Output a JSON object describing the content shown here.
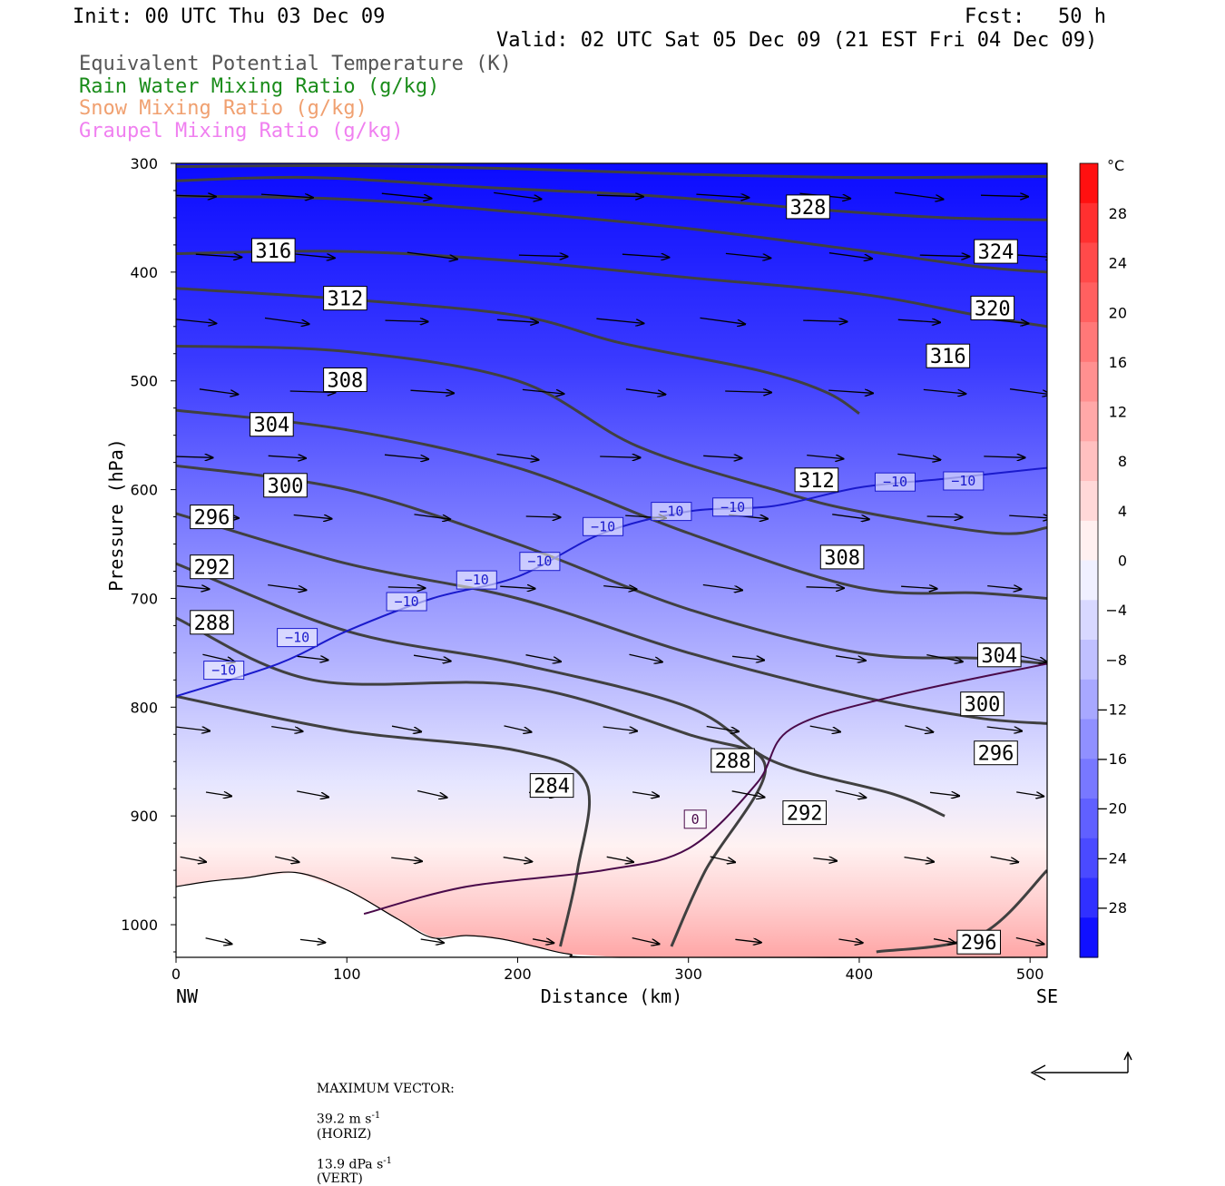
{
  "header": {
    "init": "Init: 00 UTC Thu 03 Dec 09",
    "fcst_label": "Fcst:",
    "fcst_value": "50 h",
    "valid": "Valid: 02 UTC Sat 05 Dec 09 (21 EST Fri 04 Dec 09)"
  },
  "legend": [
    {
      "text": "Equivalent Potential Temperature (K)",
      "color": "#555555"
    },
    {
      "text": "Rain Water Mixing Ratio (g/kg)",
      "color": "#1a8c1a"
    },
    {
      "text": "Snow Mixing Ratio (g/kg)",
      "color": "#f0a070"
    },
    {
      "text": "Graupel Mixing Ratio (g/kg)",
      "color": "#f080f0"
    }
  ],
  "footer": {
    "max_vector_label": "MAXIMUM VECTOR:",
    "horiz_value": "39.2 m s",
    "horiz_exp": "-1",
    "horiz_tag": "(HORIZ)",
    "vert_value": "13.9 dPa s",
    "vert_exp": "-1",
    "vert_tag": "(VERT)"
  },
  "chart_data": {
    "type": "heatmap",
    "description": "Vertical cross-section of temperature (shaded), equivalent potential temperature contours and wind vectors",
    "xlabel": "Distance (km)",
    "ylabel": "Pressure (hPa)",
    "x_ticks": [
      0,
      100,
      200,
      300,
      400,
      500
    ],
    "y_ticks": [
      300,
      400,
      500,
      600,
      700,
      800,
      900,
      1000
    ],
    "xlim": [
      0,
      510
    ],
    "ylim": [
      300,
      1030
    ],
    "x_end_labels": {
      "left": "NW",
      "right": "SE"
    },
    "colorbar": {
      "unit": "°C",
      "ticks": [
        28,
        24,
        20,
        16,
        12,
        8,
        4,
        0,
        -4,
        -8,
        -12,
        -16,
        -20,
        -24,
        -28
      ],
      "colors": [
        "#ff1010",
        "#ff3030",
        "#ff4a4a",
        "#ff6060",
        "#ff7878",
        "#ff9090",
        "#ffa8a8",
        "#ffc0c0",
        "#ffd8d8",
        "#fff0f0",
        "#f0f0ff",
        "#d8d8ff",
        "#c0c0ff",
        "#a8a8ff",
        "#9090ff",
        "#7878ff",
        "#6060ff",
        "#4a4aff",
        "#3030ff",
        "#1010ff"
      ]
    },
    "theta_e_contours": [
      {
        "value": 328,
        "points": [
          [
            0,
            303
          ],
          [
            100,
            302
          ],
          [
            200,
            305
          ],
          [
            300,
            310
          ],
          [
            400,
            313
          ],
          [
            510,
            312
          ]
        ]
      },
      {
        "value": 324,
        "points": [
          [
            0,
            316
          ],
          [
            80,
            313
          ],
          [
            180,
            322
          ],
          [
            280,
            330
          ],
          [
            380,
            343
          ],
          [
            450,
            350
          ],
          [
            510,
            352
          ]
        ]
      },
      {
        "value": 320,
        "points": [
          [
            0,
            330
          ],
          [
            100,
            333
          ],
          [
            200,
            345
          ],
          [
            300,
            360
          ],
          [
            400,
            380
          ],
          [
            470,
            395
          ],
          [
            510,
            400
          ]
        ]
      },
      {
        "value": 316,
        "points": [
          [
            0,
            383
          ],
          [
            100,
            381
          ],
          [
            200,
            390
          ],
          [
            300,
            405
          ],
          [
            400,
            420
          ],
          [
            470,
            440
          ],
          [
            510,
            450
          ]
        ]
      },
      {
        "value": 312,
        "points": [
          [
            0,
            415
          ],
          [
            100,
            425
          ],
          [
            200,
            440
          ],
          [
            260,
            465
          ],
          [
            340,
            490
          ],
          [
            380,
            510
          ],
          [
            400,
            530
          ]
        ]
      },
      {
        "value": 308,
        "points": [
          [
            0,
            468
          ],
          [
            100,
            473
          ],
          [
            200,
            500
          ],
          [
            270,
            560
          ],
          [
            350,
            600
          ],
          [
            400,
            620
          ],
          [
            480,
            640
          ],
          [
            510,
            635
          ]
        ]
      },
      {
        "value": 304,
        "points": [
          [
            0,
            527
          ],
          [
            100,
            545
          ],
          [
            200,
            580
          ],
          [
            300,
            640
          ],
          [
            400,
            690
          ],
          [
            470,
            695
          ],
          [
            510,
            700
          ]
        ]
      },
      {
        "value": 300,
        "points": [
          [
            0,
            578
          ],
          [
            100,
            600
          ],
          [
            200,
            650
          ],
          [
            300,
            710
          ],
          [
            400,
            750
          ],
          [
            470,
            755
          ],
          [
            510,
            760
          ]
        ]
      },
      {
        "value": 296,
        "points": [
          [
            0,
            622
          ],
          [
            100,
            668
          ],
          [
            200,
            700
          ],
          [
            300,
            750
          ],
          [
            400,
            790
          ],
          [
            470,
            810
          ],
          [
            510,
            815
          ]
        ]
      },
      {
        "value": 292,
        "points": [
          [
            0,
            668
          ],
          [
            100,
            730
          ],
          [
            200,
            760
          ],
          [
            300,
            800
          ],
          [
            350,
            850
          ],
          [
            420,
            880
          ],
          [
            450,
            900
          ]
        ]
      },
      {
        "value": 288,
        "points": [
          [
            0,
            718
          ],
          [
            80,
            775
          ],
          [
            200,
            780
          ],
          [
            300,
            825
          ],
          [
            345,
            855
          ],
          [
            310,
            950
          ],
          [
            290,
            1020
          ]
        ]
      },
      {
        "value": 284,
        "points": [
          [
            0,
            790
          ],
          [
            100,
            822
          ],
          [
            200,
            840
          ],
          [
            240,
            870
          ],
          [
            235,
            950
          ],
          [
            225,
            1020
          ]
        ]
      },
      {
        "value": 296,
        "points": [
          [
            410,
            1025
          ],
          [
            470,
            1010
          ],
          [
            510,
            950
          ]
        ]
      }
    ],
    "temperature_contours": [
      {
        "value": -10,
        "points": [
          [
            0,
            790
          ],
          [
            60,
            760
          ],
          [
            100,
            730
          ],
          [
            150,
            700
          ],
          [
            200,
            680
          ],
          [
            250,
            640
          ],
          [
            300,
            620
          ],
          [
            350,
            615
          ],
          [
            400,
            598
          ],
          [
            450,
            590
          ],
          [
            510,
            580
          ]
        ]
      },
      {
        "value": 0,
        "points": [
          [
            110,
            990
          ],
          [
            170,
            965
          ],
          [
            250,
            950
          ],
          [
            300,
            930
          ],
          [
            340,
            870
          ],
          [
            360,
            820
          ],
          [
            420,
            790
          ],
          [
            510,
            760
          ]
        ]
      }
    ],
    "contour_labels": [
      {
        "text": "328",
        "x": 370,
        "y": 340
      },
      {
        "text": "324",
        "x": 480,
        "y": 381
      },
      {
        "text": "320",
        "x": 478,
        "y": 433
      },
      {
        "text": "316",
        "x": 452,
        "y": 477
      },
      {
        "text": "316",
        "x": 57,
        "y": 380
      },
      {
        "text": "312",
        "x": 99,
        "y": 424
      },
      {
        "text": "312",
        "x": 375,
        "y": 591
      },
      {
        "text": "308",
        "x": 99,
        "y": 499
      },
      {
        "text": "308",
        "x": 390,
        "y": 662
      },
      {
        "text": "304",
        "x": 56,
        "y": 540
      },
      {
        "text": "304",
        "x": 482,
        "y": 752
      },
      {
        "text": "300",
        "x": 64,
        "y": 596
      },
      {
        "text": "300",
        "x": 472,
        "y": 797
      },
      {
        "text": "296",
        "x": 21,
        "y": 625
      },
      {
        "text": "296",
        "x": 480,
        "y": 842
      },
      {
        "text": "296",
        "x": 470,
        "y": 1016
      },
      {
        "text": "292",
        "x": 21,
        "y": 671
      },
      {
        "text": "292",
        "x": 368,
        "y": 897
      },
      {
        "text": "288",
        "x": 21,
        "y": 722
      },
      {
        "text": "288",
        "x": 326,
        "y": 849
      },
      {
        "text": "284",
        "x": 220,
        "y": 872
      }
    ],
    "temperature_labels": [
      {
        "text": "-10",
        "x": 28,
        "y": 766
      },
      {
        "text": "-10",
        "x": 71,
        "y": 736
      },
      {
        "text": "-10",
        "x": 135,
        "y": 703
      },
      {
        "text": "-10",
        "x": 176,
        "y": 683
      },
      {
        "text": "-10",
        "x": 213,
        "y": 666
      },
      {
        "text": "-10",
        "x": 250,
        "y": 634
      },
      {
        "text": "-10",
        "x": 290,
        "y": 620
      },
      {
        "text": "-10",
        "x": 326,
        "y": 616
      },
      {
        "text": "-10",
        "x": 421,
        "y": 593
      },
      {
        "text": "-10",
        "x": 461,
        "y": 592
      },
      {
        "text": "0",
        "x": 304,
        "y": 903
      }
    ]
  }
}
